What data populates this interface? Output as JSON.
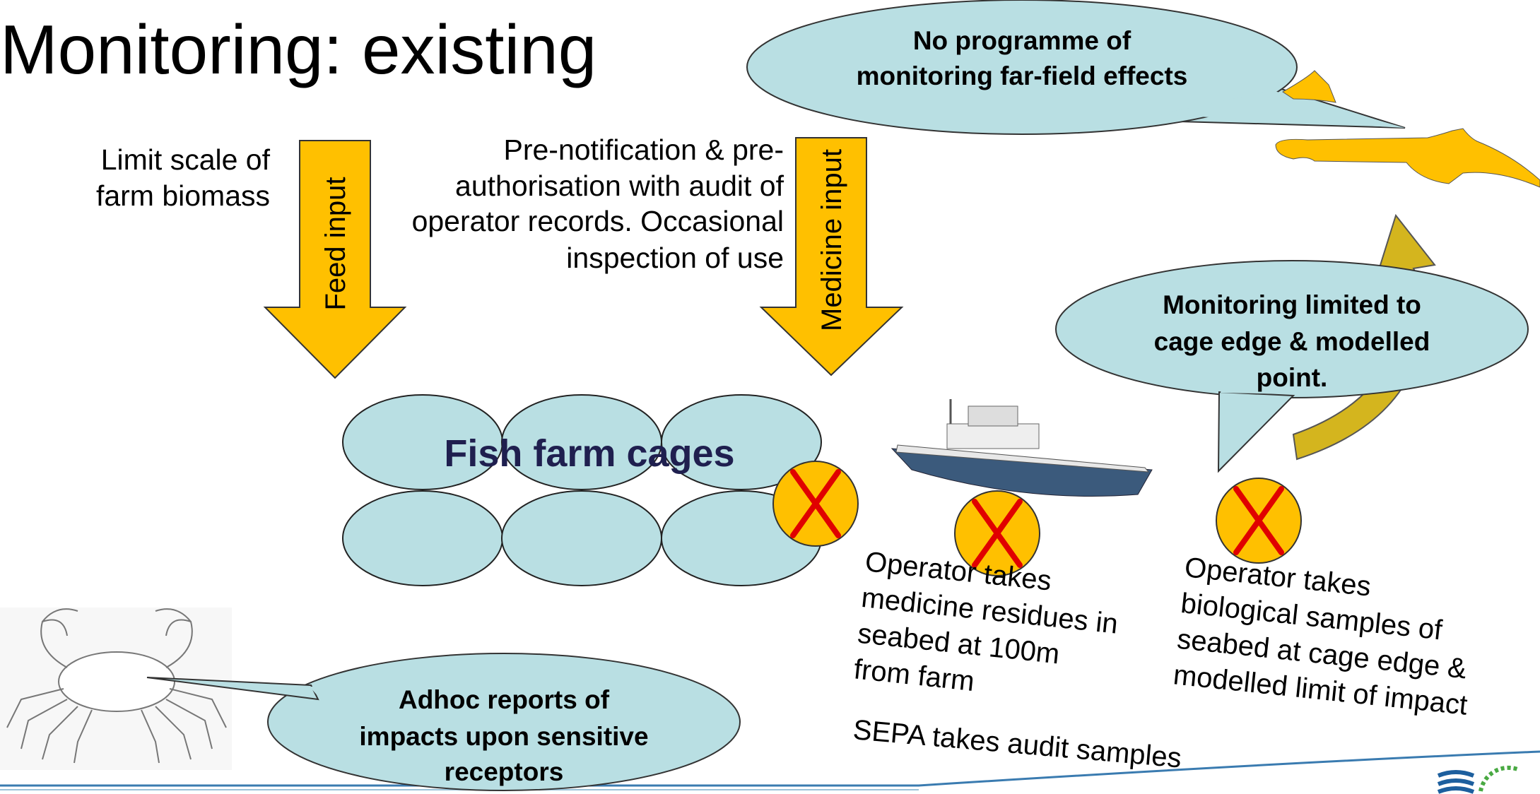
{
  "title": "Monitoring: existing",
  "inputs": [
    {
      "label": "Feed input",
      "note": [
        "Limit scale of",
        "farm biomass"
      ]
    },
    {
      "label": "Medicine input",
      "note": [
        "Pre-notification & pre-",
        "authorisation with audit of",
        "operator records. Occasional",
        "inspection of use"
      ]
    }
  ],
  "cages": {
    "label": "Fish farm cages"
  },
  "callouts": [
    {
      "lines": [
        "No programme of",
        "monitoring far-field effects"
      ]
    },
    {
      "lines": [
        "Monitoring limited to",
        "cage edge & modelled",
        "point."
      ]
    },
    {
      "lines": [
        "Adhoc reports of",
        "impacts upon sensitive",
        "receptors"
      ]
    }
  ],
  "samples": [
    {
      "lines": [
        "Operator takes",
        "medicine residues in",
        "seabed at 100m",
        "from farm"
      ]
    },
    {
      "lines": [
        "Operator takes",
        "biological samples of",
        "seabed at cage edge &",
        "modelled limit of impact"
      ]
    }
  ],
  "audit": "SEPA takes audit samples"
}
